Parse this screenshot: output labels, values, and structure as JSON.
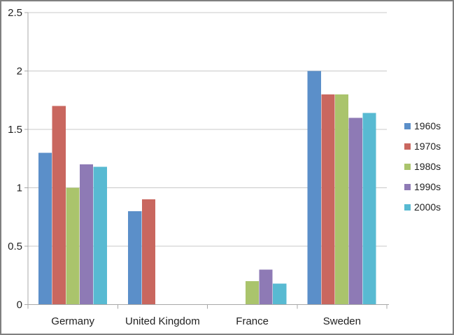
{
  "chart_data": {
    "type": "bar",
    "title": "",
    "xlabel": "",
    "ylabel": "",
    "categories": [
      "Germany",
      "United Kingdom",
      "France",
      "Sweden"
    ],
    "series": [
      {
        "name": "1960s",
        "color": "#5B8FC9",
        "values": [
          1.3,
          0.8,
          0,
          2.0
        ]
      },
      {
        "name": "1970s",
        "color": "#C9675F",
        "values": [
          1.7,
          0.9,
          0,
          1.8
        ]
      },
      {
        "name": "1980s",
        "color": "#AAC46C",
        "values": [
          1.0,
          0,
          0.2,
          1.8
        ]
      },
      {
        "name": "1990s",
        "color": "#8E7AB5",
        "values": [
          1.2,
          0,
          0.3,
          1.6
        ]
      },
      {
        "name": "2000s",
        "color": "#58BAD2",
        "values": [
          1.18,
          0,
          0.18,
          1.64
        ]
      }
    ],
    "ylim": [
      0,
      2.5
    ],
    "ytick_step": 0.5,
    "ytick_labels": [
      "0",
      "0.5",
      "1",
      "1.5",
      "2",
      "2.5"
    ],
    "grid": true,
    "legend_position": "right",
    "bar_gap_ratio": 1.5
  },
  "frame": {
    "background": "#FFFFFF",
    "border_color": "#808080",
    "gridline_color": "#C8C8C8",
    "axis_color": "#A8A8A8",
    "text_color": "#1F1F1F"
  }
}
